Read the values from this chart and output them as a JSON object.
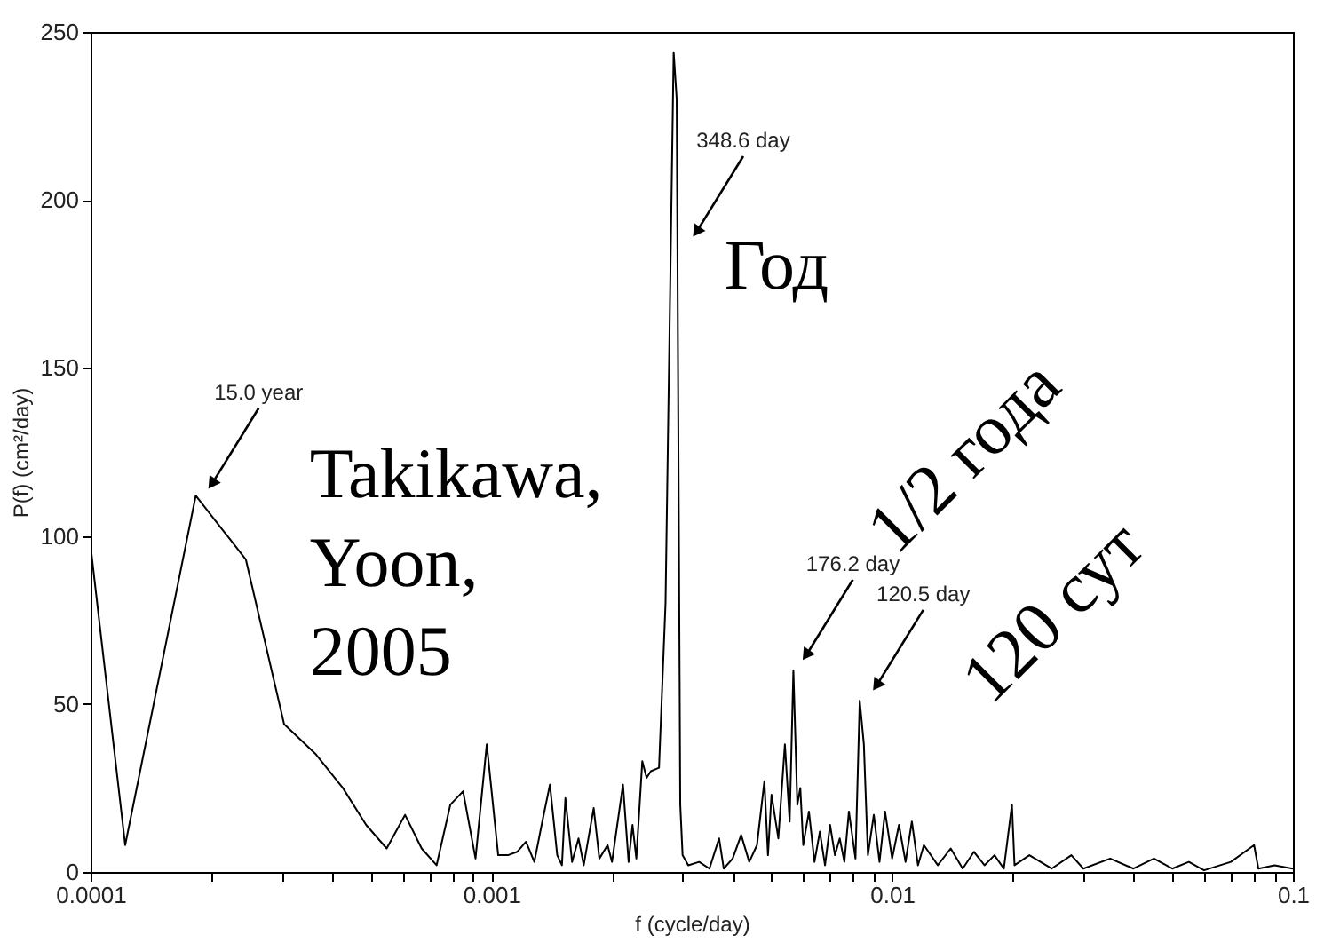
{
  "chart_data": {
    "type": "line",
    "xlabel": "f (cycle/day)",
    "ylabel": "P(f) (cm²/day)",
    "x": [
      0.0001,
      0.000122,
      0.000183,
      0.000244,
      0.000304,
      0.000365,
      0.000426,
      0.000487,
      0.000548,
      0.000609,
      0.00067,
      0.00073,
      0.00079,
      0.00085,
      0.000913,
      0.000974,
      0.00104,
      0.0011,
      0.00116,
      0.00122,
      0.00128,
      0.00134,
      0.0014,
      0.00146,
      0.0015,
      0.00153,
      0.00159,
      0.00165,
      0.0017,
      0.0018,
      0.00186,
      0.00195,
      0.002,
      0.00213,
      0.0022,
      0.00225,
      0.0023,
      0.00238,
      0.00244,
      0.0025,
      0.00262,
      0.00272,
      0.00285,
      0.0029,
      0.00296,
      0.003,
      0.0031,
      0.0033,
      0.0035,
      0.0037,
      0.0038,
      0.004,
      0.0042,
      0.0044,
      0.0046,
      0.0048,
      0.0049,
      0.005,
      0.0052,
      0.0054,
      0.00555,
      0.00567,
      0.0058,
      0.0059,
      0.006,
      0.0062,
      0.0064,
      0.0066,
      0.0068,
      0.007,
      0.0072,
      0.0074,
      0.0076,
      0.0078,
      0.0081,
      0.0083,
      0.0085,
      0.0087,
      0.009,
      0.0093,
      0.0096,
      0.01,
      0.0104,
      0.0108,
      0.0112,
      0.0116,
      0.012,
      0.013,
      0.014,
      0.015,
      0.016,
      0.017,
      0.018,
      0.019,
      0.0199,
      0.0202,
      0.022,
      0.025,
      0.028,
      0.03,
      0.035,
      0.04,
      0.045,
      0.05,
      0.055,
      0.06,
      0.07,
      0.08,
      0.082,
      0.09,
      0.1
    ],
    "series": [
      {
        "color": "#000000",
        "values": [
          97,
          8,
          112,
          93,
          44,
          35,
          25,
          14,
          7,
          17,
          7,
          2,
          20,
          24,
          4,
          38,
          5,
          5,
          6,
          9,
          3,
          15,
          26,
          5,
          2,
          22,
          3,
          10,
          2,
          19,
          4,
          8,
          3,
          26,
          3,
          14,
          4,
          33,
          28,
          30,
          31,
          80,
          244,
          230,
          20,
          5,
          2,
          3,
          1,
          10,
          1,
          4,
          11,
          3,
          8,
          27,
          5,
          23,
          10,
          38,
          15,
          60,
          20,
          25,
          8,
          18,
          3,
          12,
          2,
          14,
          5,
          10,
          3,
          18,
          4,
          51,
          38,
          5,
          17,
          3,
          18,
          4,
          14,
          3,
          15,
          2,
          8,
          2,
          7,
          1,
          6,
          2,
          5,
          1,
          20,
          2,
          5,
          1,
          5,
          1,
          4,
          1,
          4,
          1,
          3,
          0.5,
          3,
          8,
          1,
          2,
          1
        ]
      }
    ],
    "xlim": [
      0.0001,
      0.1
    ],
    "xticks": [
      0.0001,
      {
        "value": 0.0002,
        "label": null
      },
      {
        "value": 0.0003,
        "label": null
      },
      {
        "value": 0.0004,
        "label": null
      },
      {
        "value": 0.0005,
        "label": null
      },
      {
        "value": 0.0006,
        "label": null
      },
      {
        "value": 0.0007,
        "label": null
      },
      {
        "value": 0.0008,
        "label": null
      },
      {
        "value": 0.0009,
        "label": null
      },
      0.001,
      {
        "value": 0.002,
        "label": null
      },
      {
        "value": 0.003,
        "label": null
      },
      {
        "value": 0.004,
        "label": null
      },
      {
        "value": 0.005,
        "label": null
      },
      {
        "value": 0.006,
        "label": null
      },
      {
        "value": 0.007,
        "label": null
      },
      {
        "value": 0.008,
        "label": null
      },
      {
        "value": 0.009,
        "label": null
      },
      0.01,
      {
        "value": 0.02,
        "label": null
      },
      {
        "value": 0.03,
        "label": null
      },
      {
        "value": 0.04,
        "label": null
      },
      {
        "value": 0.05,
        "label": null
      },
      {
        "value": 0.06,
        "label": null
      },
      {
        "value": 0.07,
        "label": null
      },
      {
        "value": 0.08,
        "label": null
      },
      {
        "value": 0.09,
        "label": null
      },
      0.1
    ],
    "ylim": [
      0,
      250
    ],
    "yticks": [
      0,
      50,
      100,
      150,
      200,
      250
    ],
    "log": "x",
    "grid": false,
    "marker": "none",
    "line_style": "solid",
    "annotations": [
      {
        "text": "15.0 year",
        "x": 0.000202,
        "y": 116
      },
      {
        "text": "348.6 day",
        "x": 0.00327,
        "y": 191
      },
      {
        "text": "176.2 day",
        "x": 0.00614,
        "y": 65
      },
      {
        "text": "120.5 day",
        "x": 0.0092,
        "y": 56
      },
      "Takikawa,\nYoon,\n2005",
      "Год",
      "1/2 года",
      "120 сут"
    ]
  }
}
